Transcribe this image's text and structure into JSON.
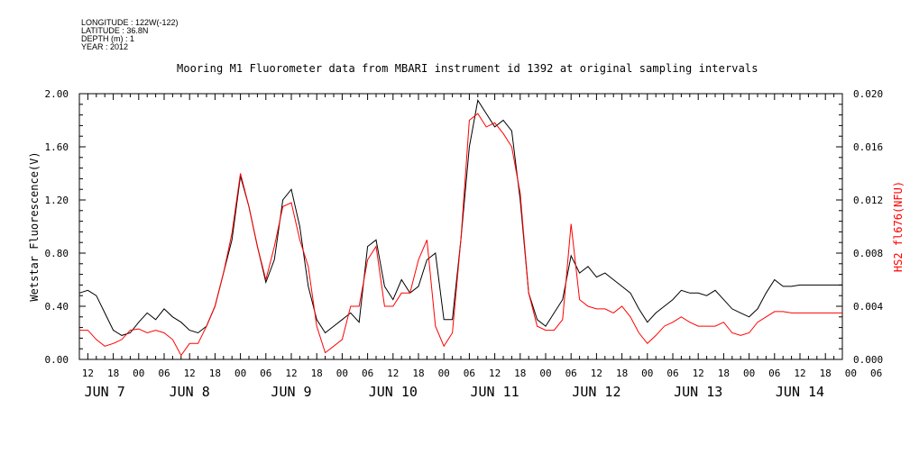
{
  "header": {
    "meta_lines": [
      "LONGITUDE : 122W(-122)",
      "LATITUDE : 36.8N",
      "DEPTH (m) : 1",
      "YEAR : 2012"
    ],
    "title": "Mooring M1 Fluorometer data from MBARI instrument id 1392 at original sampling intervals"
  },
  "chart_data": {
    "type": "line",
    "title": "Mooring M1 Fluorometer data from MBARI instrument id 1392 at original sampling intervals",
    "xlabel": "",
    "ylabel": "Wetstar Fluorescence(V)",
    "y2label": "HS2 fl676(NFU)",
    "xlim_hours": [
      -14,
      166
    ],
    "ylim": [
      0,
      2.0
    ],
    "y2lim": [
      0,
      0.02
    ],
    "yticks": [
      "0.00",
      "0.40",
      "0.80",
      "1.20",
      "1.60",
      "2.00"
    ],
    "y2ticks": [
      "0.000",
      "0.004",
      "0.008",
      "0.012",
      "0.016",
      "0.020"
    ],
    "x_hour_ticks": [
      "12",
      "18",
      "00",
      "06",
      "12",
      "18",
      "00",
      "06",
      "12",
      "18",
      "00",
      "06",
      "12",
      "18",
      "00",
      "06",
      "12",
      "18",
      "00",
      "06",
      "12",
      "18",
      "00",
      "06",
      "12",
      "18",
      "00",
      "06",
      "12",
      "18",
      "00",
      "06"
    ],
    "x_day_labels": [
      "JUN  7",
      "JUN  8",
      "JUN  9",
      "JUN 10",
      "JUN 11",
      "JUN 12",
      "JUN 13",
      "JUN 14"
    ],
    "series": [
      {
        "name": "Wetstar Fluorescence(V)",
        "axis": "left",
        "color": "#000000",
        "x": [
          -14,
          -12,
          -10,
          -8,
          -6,
          -4,
          -2,
          0,
          2,
          4,
          6,
          8,
          10,
          12,
          14,
          16,
          18,
          20,
          22,
          24,
          26,
          28,
          30,
          32,
          34,
          36,
          38,
          40,
          42,
          44,
          46,
          48,
          50,
          52,
          54,
          56,
          58,
          60,
          62,
          64,
          66,
          68,
          70,
          72,
          74,
          76,
          78,
          80,
          82,
          84,
          86,
          88,
          90,
          92,
          94,
          96,
          98,
          100,
          102,
          104,
          106,
          108,
          110,
          112,
          114,
          116,
          118,
          120,
          122,
          124,
          126,
          128,
          130,
          132,
          134,
          136,
          138,
          140,
          142,
          144,
          146,
          148,
          150,
          152,
          154,
          156,
          158,
          160,
          162,
          164,
          166
        ],
        "y": [
          0.5,
          0.52,
          0.48,
          0.35,
          0.22,
          0.18,
          0.2,
          0.28,
          0.35,
          0.3,
          0.38,
          0.32,
          0.28,
          0.22,
          0.2,
          0.25,
          0.4,
          0.65,
          0.9,
          1.38,
          1.15,
          0.85,
          0.58,
          0.75,
          1.2,
          1.28,
          1.0,
          0.55,
          0.3,
          0.2,
          0.25,
          0.3,
          0.35,
          0.28,
          0.85,
          0.9,
          0.55,
          0.45,
          0.6,
          0.5,
          0.55,
          0.75,
          0.8,
          0.3,
          0.3,
          0.9,
          1.6,
          1.95,
          1.85,
          1.75,
          1.8,
          1.72,
          1.2,
          0.5,
          0.3,
          0.25,
          0.35,
          0.45,
          0.78,
          0.65,
          0.7,
          0.62,
          0.65,
          0.6,
          0.55,
          0.5,
          0.38,
          0.28,
          0.35,
          0.4,
          0.45,
          0.52,
          0.5,
          0.5,
          0.48,
          0.52,
          0.45,
          0.38,
          0.35,
          0.32,
          0.38,
          0.5,
          0.6,
          0.55,
          0.55,
          0.56,
          0.56,
          0.56,
          0.56,
          0.56,
          0.56
        ]
      },
      {
        "name": "HS2 fl676(NFU)",
        "axis": "right",
        "color": "#ff0000",
        "x": [
          -14,
          -12,
          -10,
          -8,
          -6,
          -4,
          -2,
          0,
          2,
          4,
          6,
          8,
          10,
          12,
          14,
          16,
          18,
          20,
          22,
          24,
          26,
          28,
          30,
          32,
          34,
          36,
          38,
          40,
          42,
          44,
          46,
          48,
          50,
          52,
          54,
          56,
          58,
          60,
          62,
          64,
          66,
          68,
          70,
          72,
          74,
          76,
          78,
          80,
          82,
          84,
          86,
          88,
          90,
          92,
          94,
          96,
          98,
          100,
          102,
          104,
          106,
          108,
          110,
          112,
          114,
          116,
          118,
          120,
          122,
          124,
          126,
          128,
          130,
          132,
          134,
          136,
          138,
          140,
          142,
          144,
          146,
          148,
          150,
          152,
          154,
          156,
          158,
          160,
          162,
          164,
          166
        ],
        "y": [
          0.0022,
          0.0022,
          0.0015,
          0.001,
          0.0012,
          0.0015,
          0.0022,
          0.0023,
          0.002,
          0.0022,
          0.002,
          0.0015,
          0.0003,
          0.0012,
          0.0012,
          0.0025,
          0.004,
          0.0065,
          0.0095,
          0.014,
          0.0115,
          0.0085,
          0.006,
          0.0085,
          0.0115,
          0.0118,
          0.009,
          0.007,
          0.0025,
          0.0005,
          0.001,
          0.0015,
          0.004,
          0.004,
          0.0075,
          0.0085,
          0.004,
          0.004,
          0.005,
          0.005,
          0.0075,
          0.009,
          0.0025,
          0.001,
          0.002,
          0.009,
          0.018,
          0.0185,
          0.0175,
          0.0178,
          0.017,
          0.016,
          0.0125,
          0.005,
          0.0025,
          0.0022,
          0.0022,
          0.003,
          0.0102,
          0.0045,
          0.004,
          0.0038,
          0.0038,
          0.0035,
          0.004,
          0.0032,
          0.002,
          0.0012,
          0.0018,
          0.0025,
          0.0028,
          0.0032,
          0.0028,
          0.0025,
          0.0025,
          0.0025,
          0.0028,
          0.002,
          0.0018,
          0.002,
          0.0028,
          0.0032,
          0.0036,
          0.0036,
          0.0035,
          0.0035,
          0.0035,
          0.0035,
          0.0035,
          0.0035,
          0.0035
        ]
      }
    ]
  }
}
